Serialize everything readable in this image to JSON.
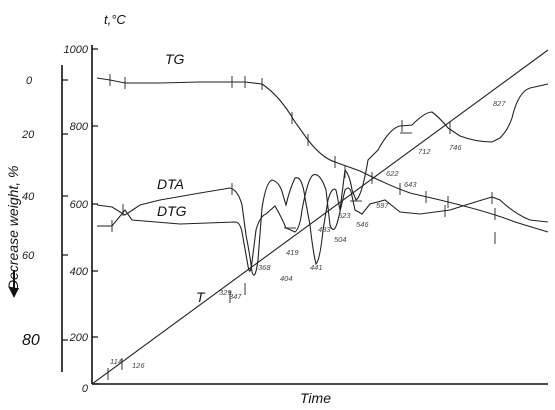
{
  "chart_data": {
    "type": "line",
    "xlabel": "Time",
    "temp_axis": {
      "label": "t,°C",
      "ticks": [
        "0",
        "200",
        "400",
        "600",
        "800",
        "1000"
      ]
    },
    "weight_axis": {
      "label": "Decrease weight, %",
      "ticks": [
        "0",
        "20",
        "40",
        "60",
        "80"
      ]
    },
    "curve_labels": {
      "tg": "TG",
      "dta": "DTA",
      "dtg": "DTG",
      "t": "T"
    },
    "t_curve_points": [
      {
        "label": "114",
        "value": 114
      },
      {
        "label": "126",
        "value": 126
      },
      {
        "label": "329",
        "value": 329
      },
      {
        "label": "347",
        "value": 347
      },
      {
        "label": "368",
        "value": 368
      },
      {
        "label": "404",
        "value": 404
      },
      {
        "label": "419",
        "value": 419
      },
      {
        "label": "441",
        "value": 441
      },
      {
        "label": "483",
        "value": 483
      },
      {
        "label": "504",
        "value": 504
      },
      {
        "label": "523",
        "value": 523
      },
      {
        "label": "546",
        "value": 546
      },
      {
        "label": "597",
        "value": 597
      },
      {
        "label": "622",
        "value": 622
      },
      {
        "label": "643",
        "value": 643
      },
      {
        "label": "712",
        "value": 712
      },
      {
        "label": "746",
        "value": 746
      },
      {
        "label": "827",
        "value": 827
      }
    ]
  }
}
